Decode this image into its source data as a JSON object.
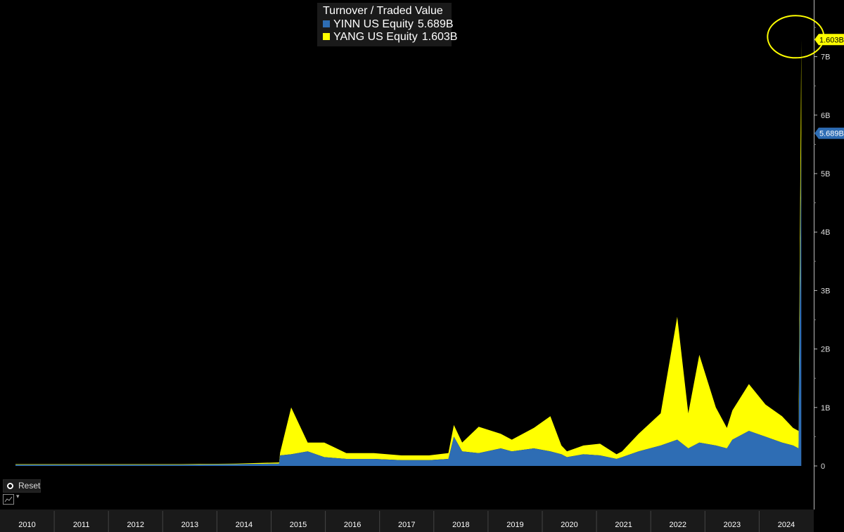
{
  "legend": {
    "title": "Turnover / Traded Value",
    "items": [
      {
        "name": "YINN US Equity",
        "value": "5.689B",
        "color": "#2e6db4"
      },
      {
        "name": "YANG US Equity",
        "value": "1.603B",
        "color": "#ffff00"
      }
    ]
  },
  "controls": {
    "reset_label": "Reset"
  },
  "chart_data": {
    "type": "area",
    "stacked": true,
    "title": "Turnover / Traded Value",
    "x_labels": [
      "2010",
      "2011",
      "2012",
      "2013",
      "2014",
      "2015",
      "2016",
      "2017",
      "2018",
      "2019",
      "2020",
      "2021",
      "2022",
      "2023",
      "2024"
    ],
    "y_ticks": [
      "0",
      "1B",
      "2B",
      "3B",
      "4B",
      "5B",
      "6B",
      "7B"
    ],
    "ylim": [
      0,
      7.3
    ],
    "y_unit": "B",
    "last_value_tags": [
      {
        "series": "YANG US Equity",
        "label": "1.603B",
        "color": "#ffff00"
      },
      {
        "series": "YINN US Equity",
        "label": "5.689B",
        "color": "#2e6db4"
      }
    ],
    "highlight_circle": {
      "series": "YANG US Equity",
      "label": "1.603B"
    },
    "series": [
      {
        "name": "YINN US Equity",
        "color": "#2e6db4",
        "points": [
          [
            2010.0,
            0.02
          ],
          [
            2011.0,
            0.02
          ],
          [
            2012.0,
            0.02
          ],
          [
            2013.0,
            0.02
          ],
          [
            2014.0,
            0.03
          ],
          [
            2014.78,
            0.04
          ],
          [
            2014.8,
            0.18
          ],
          [
            2015.0,
            0.2
          ],
          [
            2015.3,
            0.25
          ],
          [
            2015.6,
            0.15
          ],
          [
            2016.0,
            0.12
          ],
          [
            2016.5,
            0.12
          ],
          [
            2017.0,
            0.1
          ],
          [
            2017.5,
            0.1
          ],
          [
            2017.85,
            0.12
          ],
          [
            2017.95,
            0.5
          ],
          [
            2018.1,
            0.25
          ],
          [
            2018.4,
            0.22
          ],
          [
            2018.8,
            0.3
          ],
          [
            2019.0,
            0.25
          ],
          [
            2019.4,
            0.3
          ],
          [
            2019.7,
            0.25
          ],
          [
            2019.9,
            0.2
          ],
          [
            2020.0,
            0.15
          ],
          [
            2020.3,
            0.2
          ],
          [
            2020.6,
            0.18
          ],
          [
            2020.9,
            0.12
          ],
          [
            2021.0,
            0.15
          ],
          [
            2021.3,
            0.25
          ],
          [
            2021.7,
            0.35
          ],
          [
            2022.0,
            0.45
          ],
          [
            2022.2,
            0.3
          ],
          [
            2022.4,
            0.4
          ],
          [
            2022.7,
            0.35
          ],
          [
            2022.9,
            0.3
          ],
          [
            2023.0,
            0.45
          ],
          [
            2023.3,
            0.6
          ],
          [
            2023.6,
            0.5
          ],
          [
            2023.9,
            0.4
          ],
          [
            2024.1,
            0.35
          ],
          [
            2024.2,
            0.3
          ],
          [
            2024.25,
            5.689
          ]
        ]
      },
      {
        "name": "YANG US Equity",
        "color": "#ffff00",
        "points": [
          [
            2010.0,
            0.01
          ],
          [
            2011.0,
            0.01
          ],
          [
            2012.0,
            0.01
          ],
          [
            2013.0,
            0.01
          ],
          [
            2014.0,
            0.01
          ],
          [
            2014.78,
            0.02
          ],
          [
            2014.8,
            0.05
          ],
          [
            2015.0,
            0.8
          ],
          [
            2015.3,
            0.15
          ],
          [
            2015.6,
            0.25
          ],
          [
            2016.0,
            0.1
          ],
          [
            2016.5,
            0.1
          ],
          [
            2017.0,
            0.08
          ],
          [
            2017.5,
            0.08
          ],
          [
            2017.85,
            0.1
          ],
          [
            2017.95,
            0.2
          ],
          [
            2018.1,
            0.15
          ],
          [
            2018.4,
            0.45
          ],
          [
            2018.8,
            0.25
          ],
          [
            2019.0,
            0.2
          ],
          [
            2019.4,
            0.35
          ],
          [
            2019.7,
            0.6
          ],
          [
            2019.9,
            0.15
          ],
          [
            2020.0,
            0.1
          ],
          [
            2020.3,
            0.15
          ],
          [
            2020.6,
            0.2
          ],
          [
            2020.9,
            0.08
          ],
          [
            2021.0,
            0.1
          ],
          [
            2021.3,
            0.3
          ],
          [
            2021.7,
            0.55
          ],
          [
            2022.0,
            2.1
          ],
          [
            2022.2,
            0.6
          ],
          [
            2022.4,
            1.5
          ],
          [
            2022.7,
            0.65
          ],
          [
            2022.9,
            0.35
          ],
          [
            2023.0,
            0.5
          ],
          [
            2023.3,
            0.8
          ],
          [
            2023.6,
            0.55
          ],
          [
            2023.9,
            0.45
          ],
          [
            2024.1,
            0.3
          ],
          [
            2024.2,
            0.3
          ],
          [
            2024.25,
            1.603
          ]
        ]
      }
    ],
    "grid": false,
    "legend_position": "top-center"
  }
}
